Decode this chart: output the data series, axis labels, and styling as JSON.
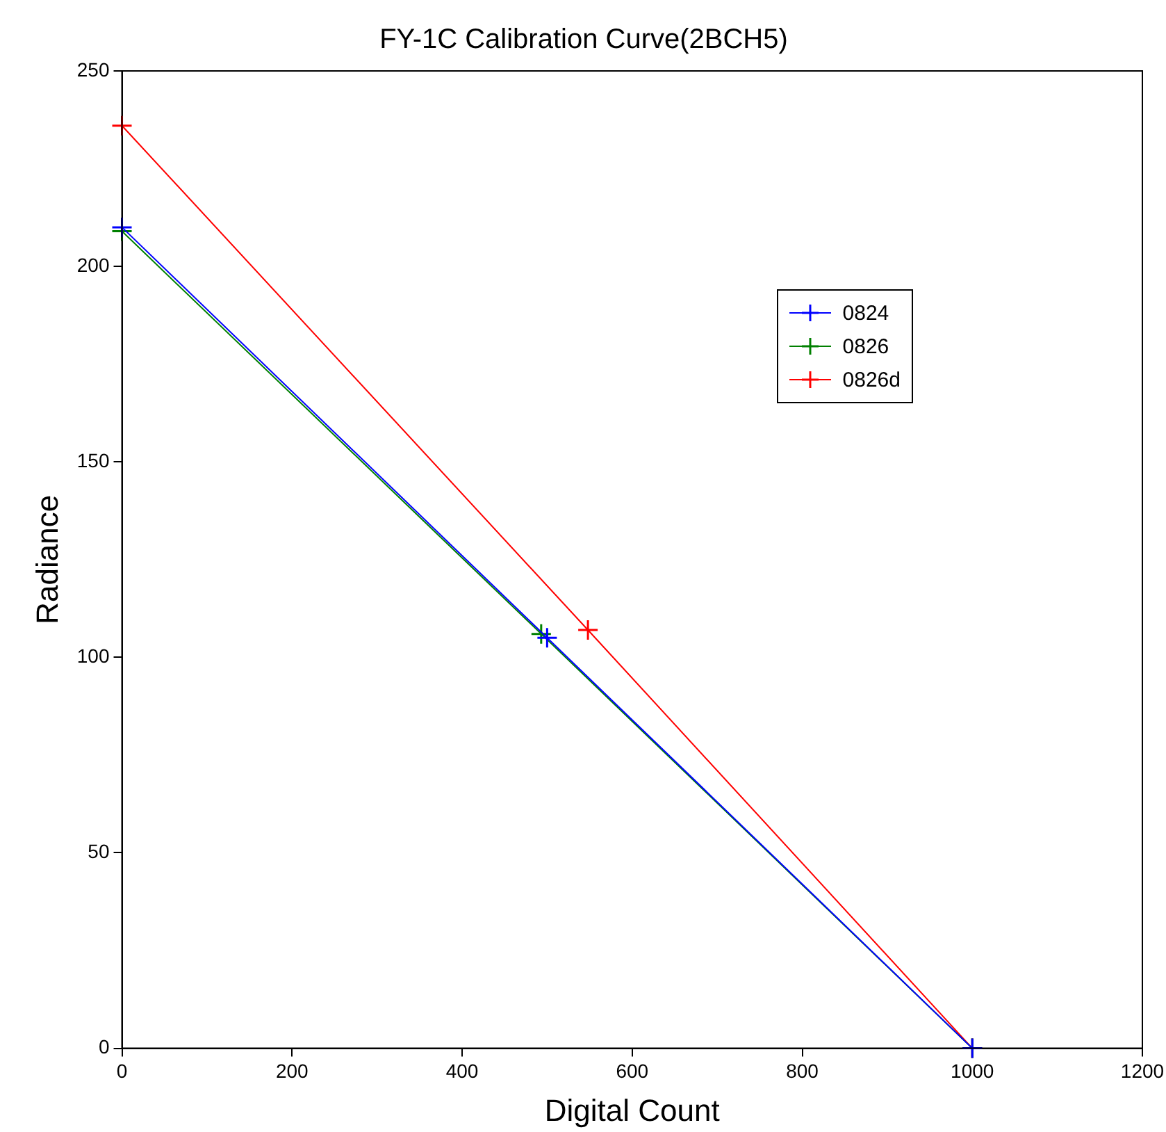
{
  "chart_data": {
    "type": "line",
    "title": "FY-1C Calibration Curve(2BCH5)",
    "xlabel": "Digital Count",
    "ylabel": "Radiance",
    "series": [
      {
        "name": "0824",
        "color": "#0000ff",
        "x": [
          0,
          500,
          1000
        ],
        "values": [
          210,
          105,
          0
        ]
      },
      {
        "name": "0826",
        "color": "#008000",
        "x": [
          0,
          493,
          1000
        ],
        "values": [
          209,
          106,
          0
        ]
      },
      {
        "name": "0826d",
        "color": "#ff0000",
        "x": [
          0,
          548,
          1000
        ],
        "values": [
          236,
          107,
          0
        ]
      }
    ],
    "xlim": [
      0,
      1200
    ],
    "xticks": [
      0,
      200,
      400,
      600,
      800,
      1000,
      1200
    ],
    "ylim": [
      0,
      250
    ],
    "yticks": [
      0,
      50,
      100,
      150,
      200,
      250
    ],
    "grid": false,
    "legend": "top right",
    "marker": "cross",
    "line_style": "solid"
  }
}
